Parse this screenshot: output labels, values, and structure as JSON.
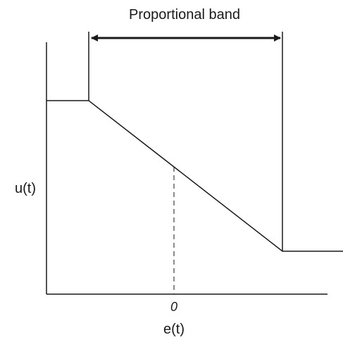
{
  "diagram": {
    "band_label": "Proportional band",
    "y_axis_label": "u(t)",
    "x_axis_label": "e(t)",
    "origin_label": "0"
  },
  "colors": {
    "ink": "#1a1a1a",
    "background": "#ffffff"
  }
}
